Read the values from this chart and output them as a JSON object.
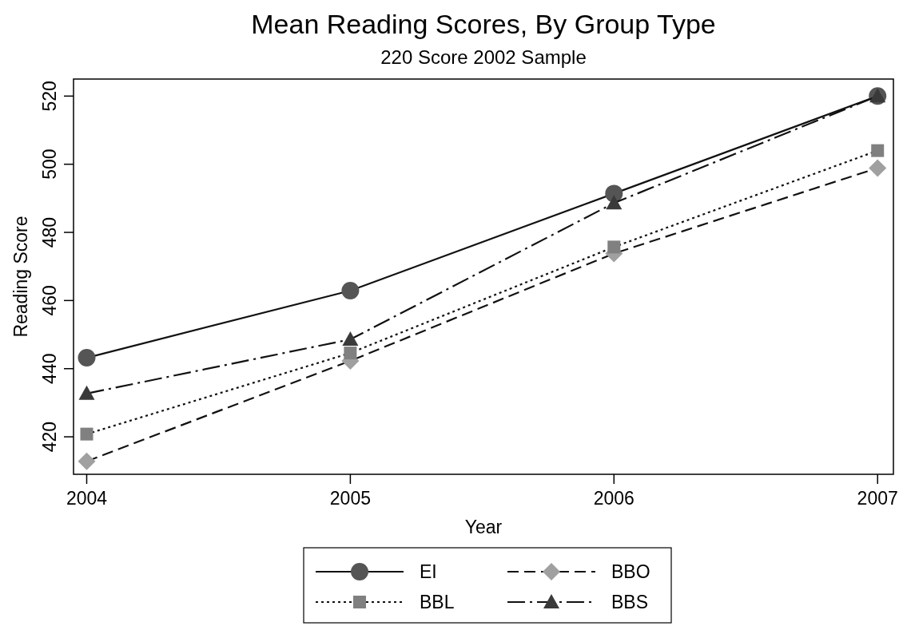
{
  "chart_data": {
    "type": "line",
    "title": "Mean Reading Scores, By Group Type",
    "subtitle": "220 Score 2002 Sample",
    "xlabel": "Year",
    "ylabel": "Reading Score",
    "x": [
      2004,
      2005,
      2006,
      2007
    ],
    "xlim": [
      2003.95,
      2007.06
    ],
    "xticks": [
      2004,
      2005,
      2006,
      2007
    ],
    "ylim": [
      409,
      525
    ],
    "yticks": [
      420,
      440,
      460,
      480,
      500,
      520
    ],
    "grid": false,
    "legend": "bottom",
    "series": [
      {
        "name": "EI",
        "color": "#555555",
        "values": [
          443.2,
          462.9,
          491.4,
          520
        ],
        "marker": "circle",
        "line_style": "solid"
      },
      {
        "name": "BBO",
        "color": "#a0a0a0",
        "values": [
          412.8,
          442.3,
          473.8,
          498.9
        ],
        "marker": "diamond",
        "line_style": "dashed"
      },
      {
        "name": "BBL",
        "color": "#808080",
        "values": [
          420.8,
          444.6,
          475.7,
          504
        ],
        "marker": "square",
        "line_style": "dotted"
      },
      {
        "name": "BBS",
        "color": "#3a3a3a",
        "values": [
          432.7,
          448.6,
          488.6,
          520
        ],
        "marker": "triangle",
        "line_style": "dashdot"
      }
    ]
  }
}
